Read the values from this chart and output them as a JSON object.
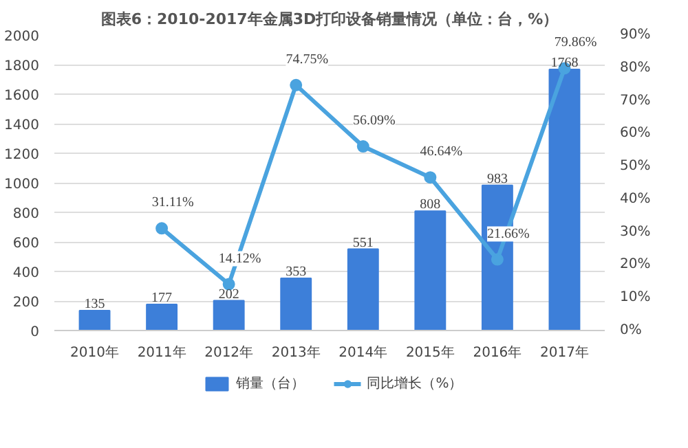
{
  "chart_data": {
    "type": "bar",
    "title": "图表6：2010-2017年金属3D打印设备销量情况（单位：台，%）",
    "categories": [
      "2010年",
      "2011年",
      "2012年",
      "2013年",
      "2014年",
      "2015年",
      "2016年",
      "2017年"
    ],
    "series": [
      {
        "name": "销量（台）",
        "color": "#3d7fd9",
        "values": [
          135,
          177,
          202,
          353,
          551,
          808,
          983,
          1768
        ]
      },
      {
        "name": "同比增长（%）",
        "type": "line",
        "axis": "y2",
        "color": "#4aa3df",
        "marker": "circle",
        "values": [
          null,
          31.11,
          14.12,
          74.75,
          56.09,
          46.64,
          21.66,
          79.86
        ],
        "value_labels": [
          null,
          "31.11%",
          "14.12%",
          "74.75%",
          "56.09%",
          "46.64%",
          "21.66%",
          "79.86%"
        ]
      }
    ],
    "data_labels": true,
    "ylim": [
      0,
      2000
    ],
    "yticks": [
      0,
      200,
      400,
      600,
      800,
      1000,
      1200,
      1400,
      1600,
      1800,
      2000
    ],
    "y2lim": [
      0,
      90
    ],
    "y2ticks": [
      {
        "value": 0,
        "label": "0%"
      },
      {
        "value": 10,
        "label": "10%"
      },
      {
        "value": 20,
        "label": "20%"
      },
      {
        "value": 30,
        "label": "30%"
      },
      {
        "value": 40,
        "label": "40%"
      },
      {
        "value": 50,
        "label": "50%"
      },
      {
        "value": 60,
        "label": "60%"
      },
      {
        "value": 70,
        "label": "70%"
      },
      {
        "value": 80,
        "label": "80%"
      },
      {
        "value": 90,
        "label": "90%"
      }
    ],
    "grid": "y",
    "legend": "bottom"
  }
}
